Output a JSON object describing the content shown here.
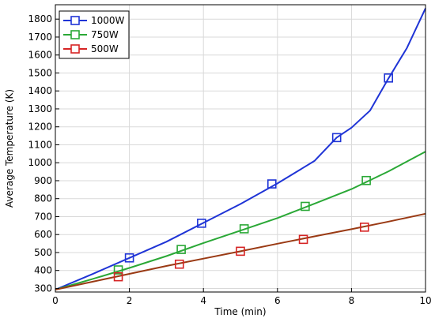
{
  "chart_data": {
    "type": "line",
    "title": "",
    "xlabel": "Time (min)",
    "ylabel": "Average Temperature  (K)",
    "xlim": [
      0,
      10
    ],
    "ylim": [
      280,
      1880
    ],
    "xticks": [
      0,
      2,
      4,
      6,
      8,
      10
    ],
    "yticks": [
      300,
      400,
      500,
      600,
      700,
      800,
      900,
      1000,
      1100,
      1200,
      1300,
      1400,
      1500,
      1600,
      1700,
      1800
    ],
    "grid": true,
    "legend_position": "top-left",
    "series": [
      {
        "name": "1000W",
        "color": "#1f34d6",
        "x": [
          0,
          1,
          2,
          3,
          4,
          5,
          6,
          7,
          7.6,
          8,
          8.5,
          9,
          9.5,
          10
        ],
        "y": [
          293,
          380,
          470,
          560,
          665,
          770,
          885,
          1010,
          1140,
          1195,
          1290,
          1470,
          1640,
          1860
        ],
        "marker_x": [
          2,
          3.95,
          5.85,
          7.6,
          9.0
        ],
        "marker_y": [
          470,
          663,
          882,
          1140,
          1472
        ]
      },
      {
        "name": "750W",
        "color": "#2aa836",
        "x": [
          0,
          1,
          2,
          3,
          4,
          5,
          6,
          7,
          8,
          9,
          10
        ],
        "y": [
          293,
          352,
          414,
          480,
          553,
          622,
          692,
          772,
          853,
          952,
          1062
        ],
        "marker_x": [
          1.7,
          3.4,
          5.1,
          6.75,
          8.4
        ],
        "marker_y": [
          403,
          517,
          632,
          757,
          901
        ]
      },
      {
        "name": "500W",
        "color": "#d62424",
        "line_color": "#9a3a14",
        "x": [
          0,
          1,
          2,
          3,
          4,
          5,
          6,
          7,
          8,
          9,
          10
        ],
        "y": [
          293,
          337,
          381,
          425,
          466,
          507,
          549,
          590,
          630,
          672,
          716
        ],
        "marker_x": [
          1.7,
          3.35,
          5.0,
          6.7,
          8.35
        ],
        "marker_y": [
          365,
          435,
          507,
          573,
          641
        ]
      }
    ]
  }
}
